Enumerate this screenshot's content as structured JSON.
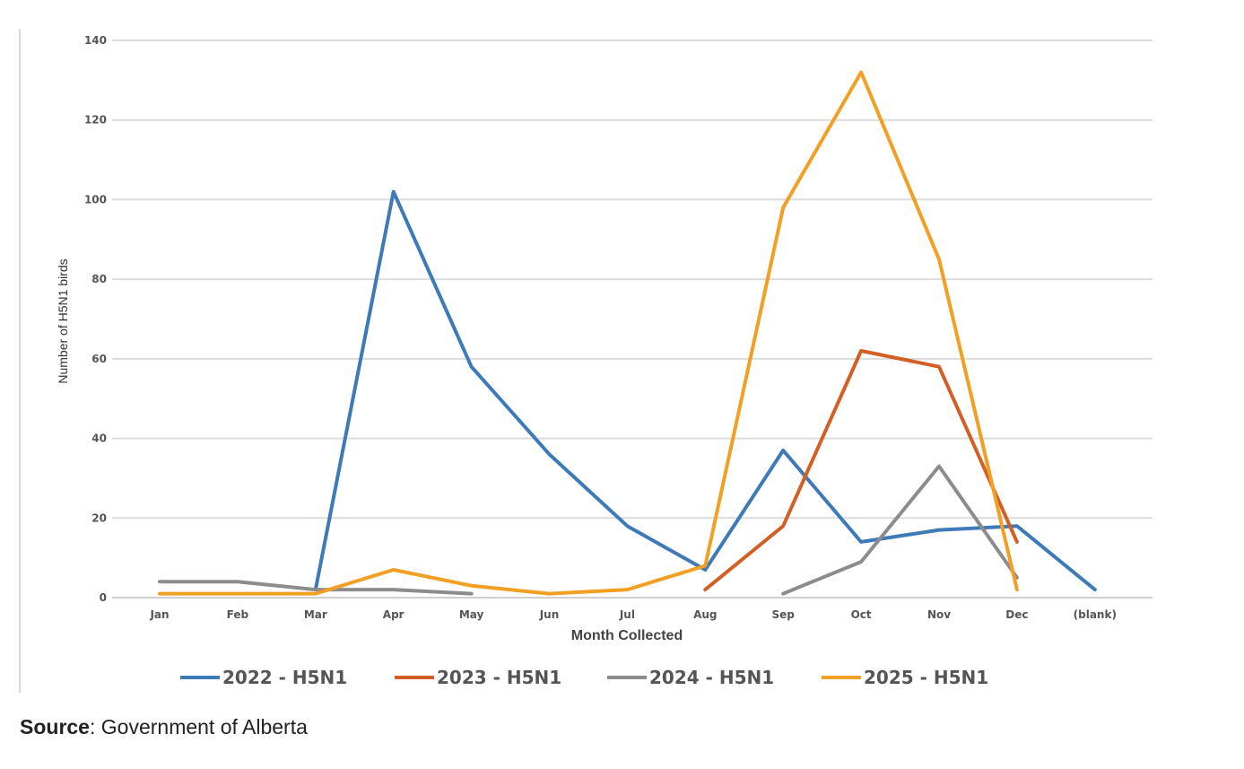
{
  "chart_data": {
    "type": "line",
    "title": "",
    "xlabel": "Month Collected",
    "ylabel": "Number of H5N1 birds",
    "categories": [
      "Jan",
      "Feb",
      "Mar",
      "Apr",
      "May",
      "Jun",
      "Jul",
      "Aug",
      "Sep",
      "Oct",
      "Nov",
      "Dec",
      "(blank)"
    ],
    "ylim": [
      0,
      140
    ],
    "yticks": [
      0,
      20,
      40,
      60,
      80,
      100,
      120,
      140
    ],
    "grid": true,
    "legend_position": "bottom",
    "series": [
      {
        "name": "2022 - H5N1",
        "color": "#3d7ab8",
        "values": [
          null,
          null,
          2,
          102,
          58,
          36,
          18,
          7,
          37,
          14,
          17,
          18,
          2
        ]
      },
      {
        "name": "2023 - H5N1",
        "color": "#d45f24",
        "values": [
          null,
          null,
          null,
          null,
          null,
          null,
          null,
          2,
          18,
          62,
          58,
          14,
          null
        ]
      },
      {
        "name": "2024 - H5N1",
        "color": "#8c8c8c",
        "values": [
          4,
          4,
          2,
          2,
          1,
          null,
          null,
          null,
          1,
          9,
          33,
          5,
          null
        ]
      },
      {
        "name": "2025 - H5N1",
        "color": "#f2a024",
        "values": [
          1,
          1,
          1,
          7,
          3,
          1,
          2,
          8,
          98,
          132,
          85,
          2,
          null
        ]
      }
    ]
  },
  "source": {
    "label": "Source",
    "text": ": Government of Alberta"
  }
}
